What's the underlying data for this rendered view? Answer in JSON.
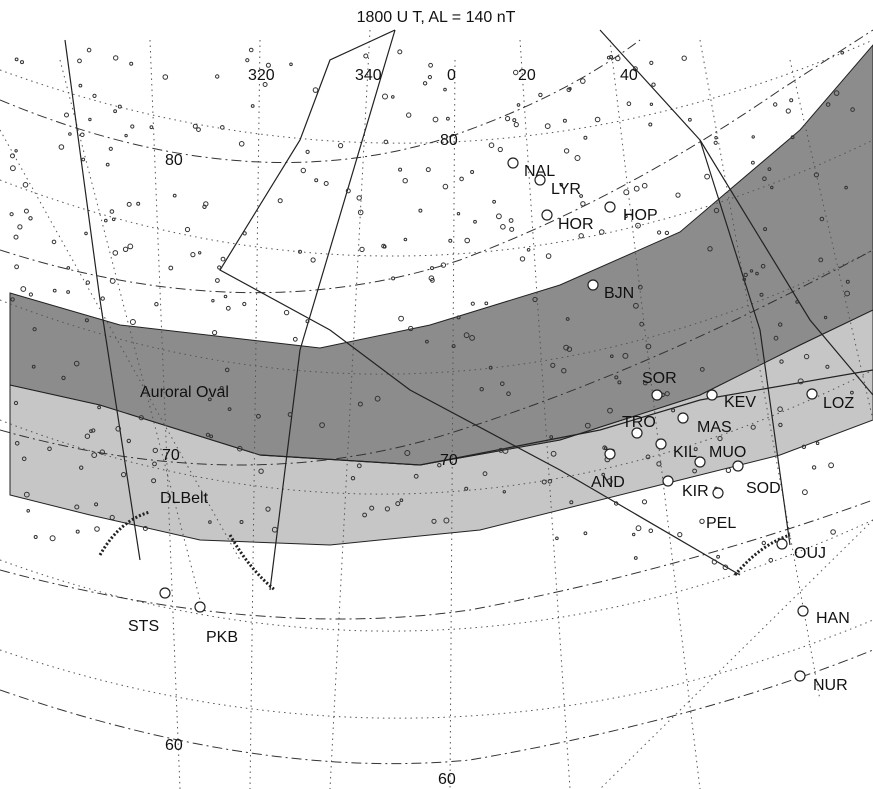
{
  "title": "1800  U T,  AL = 140 nT",
  "longitude_labels": [
    "320",
    "340",
    "0",
    "20",
    "40"
  ],
  "latitude_labels": [
    "80",
    "80",
    "70",
    "70",
    "60",
    "60"
  ],
  "regions": {
    "auroral_oval": "Auroral Oval",
    "dl_belt": "DLBelt"
  },
  "region_colors": {
    "auroral_oval": "#8c8c8c",
    "dl_belt": "#c6c6c6"
  },
  "stations": [
    {
      "code": "NAL"
    },
    {
      "code": "LYR"
    },
    {
      "code": "HOR"
    },
    {
      "code": "HOP"
    },
    {
      "code": "BJN"
    },
    {
      "code": "SOR"
    },
    {
      "code": "KEV"
    },
    {
      "code": "TRO"
    },
    {
      "code": "MAS"
    },
    {
      "code": "KIL"
    },
    {
      "code": "MUO"
    },
    {
      "code": "AND"
    },
    {
      "code": "KIR"
    },
    {
      "code": "SOD"
    },
    {
      "code": "PEL"
    },
    {
      "code": "LOZ"
    },
    {
      "code": "OUJ"
    },
    {
      "code": "STS"
    },
    {
      "code": "PKB"
    },
    {
      "code": "HAN"
    },
    {
      "code": "NUR"
    }
  ]
}
